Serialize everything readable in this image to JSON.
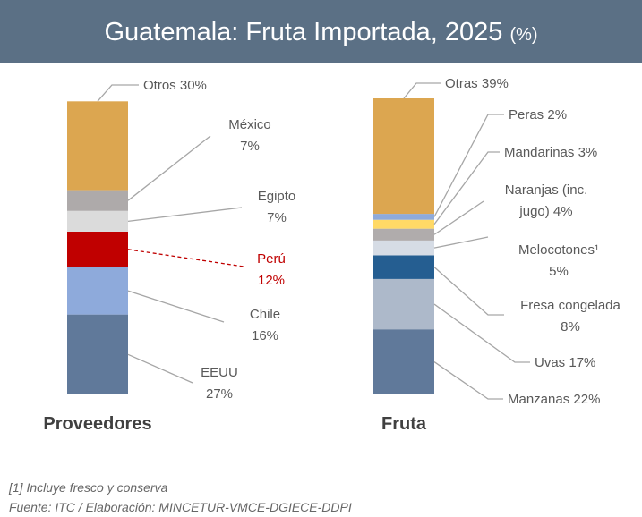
{
  "title": "Guatemala: Fruta Importada, 2025",
  "title_unit": "(%)",
  "chart_data": [
    {
      "type": "stacked_bar",
      "title": "Proveedores",
      "ylim": [
        0,
        100
      ],
      "series": [
        {
          "name": "EEUU",
          "color": "#60799a",
          "values": [
            27
          ],
          "value_labels": [
            "27%"
          ]
        },
        {
          "name": "Chile",
          "color": "#8eaadb",
          "values": [
            16
          ],
          "value_labels": [
            "16%"
          ]
        },
        {
          "name": "Perú",
          "color": "#c00000",
          "values": [
            12
          ],
          "value_labels": [
            "12%"
          ],
          "highlight": true
        },
        {
          "name": "Egipto",
          "color": "#dbdbdb",
          "values": [
            7
          ],
          "value_labels": [
            "7%"
          ]
        },
        {
          "name": "México",
          "color": "#aeaaaa",
          "values": [
            7
          ],
          "value_labels": [
            "7%"
          ]
        },
        {
          "name": "Otros",
          "color": "#dca650",
          "values": [
            30
          ],
          "value_labels": [
            "30%"
          ]
        }
      ]
    },
    {
      "type": "stacked_bar",
      "title": "Fruta",
      "ylim": [
        0,
        100
      ],
      "series": [
        {
          "name": "Manzanas",
          "color": "#60799a",
          "values": [
            22
          ],
          "value_labels": [
            "22%"
          ]
        },
        {
          "name": "Uvas",
          "color": "#adb9ca",
          "values": [
            17
          ],
          "value_labels": [
            "17%"
          ]
        },
        {
          "name": "Fresa congelada",
          "color": "#255e91",
          "values": [
            8
          ],
          "value_labels": [
            "8%"
          ]
        },
        {
          "name": "Melocotones¹",
          "color": "#d6dce5",
          "values": [
            5
          ],
          "value_labels": [
            "5%"
          ]
        },
        {
          "name": "Naranjas (inc. jugo)",
          "color": "#b0acac",
          "values": [
            4
          ],
          "value_labels": [
            "4%"
          ]
        },
        {
          "name": "Mandarinas",
          "color": "#ffd966",
          "values": [
            3
          ],
          "value_labels": [
            "3%"
          ]
        },
        {
          "name": "Peras",
          "color": "#8eaadb",
          "values": [
            2
          ],
          "value_labels": [
            "2%"
          ]
        },
        {
          "name": "Otras",
          "color": "#dca650",
          "values": [
            39
          ],
          "value_labels": [
            "39%"
          ]
        }
      ]
    }
  ],
  "footnote": "[1] Incluye fresco y conserva",
  "source": "Fuente: ITC / Elaboración: MINCETUR-VMCE-DGIECE-DDPI"
}
